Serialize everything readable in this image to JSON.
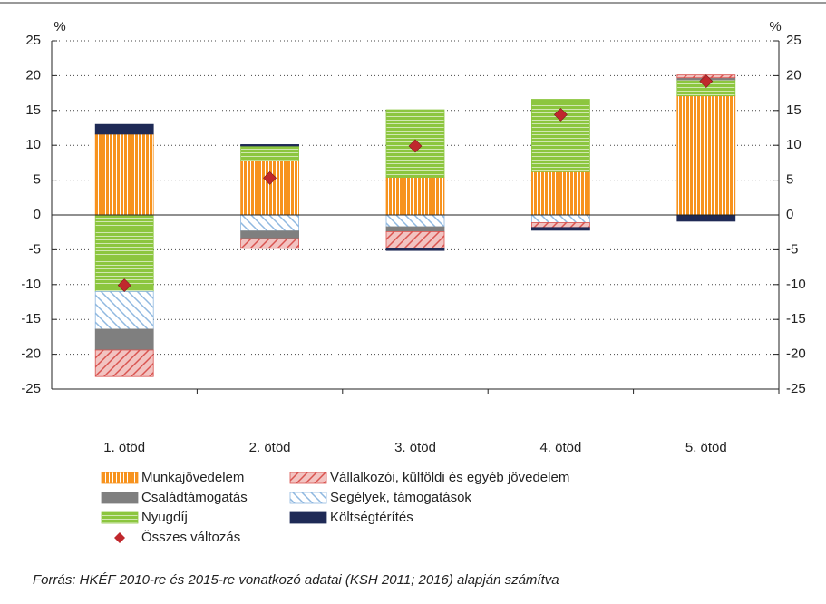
{
  "chart_data": {
    "type": "stacked_bar",
    "ylabel": "%",
    "y2label": "%",
    "categories": [
      "1. ötöd",
      "2. ötöd",
      "3. ötöd",
      "4. ötöd",
      "5. ötöd"
    ],
    "series": [
      {
        "name": "Munkajövedelem",
        "color": "#f7931e",
        "values": [
          11.6,
          7.8,
          5.4,
          6.2,
          17.1
        ]
      },
      {
        "name": "Nyugdíj",
        "color": "#8cc63f",
        "values": [
          -11.0,
          2.1,
          9.7,
          10.4,
          2.3
        ]
      },
      {
        "name": "Segélyek, támogatások",
        "color": "#8fb8e0",
        "values": [
          -5.4,
          -2.3,
          -1.7,
          -1.1,
          0
        ]
      },
      {
        "name": "Családtámogatás",
        "color": "#7f7f7f",
        "values": [
          -3.0,
          -1.1,
          -0.7,
          0,
          0.3
        ]
      },
      {
        "name": "Vállalkozói, külföldi és egyéb jövedelem",
        "color": "#d9534f",
        "values": [
          -3.8,
          -1.4,
          -2.4,
          -0.7,
          0.4
        ]
      },
      {
        "name": "Költségtérítés",
        "color": "#1f2a56",
        "values": [
          1.4,
          0.2,
          -0.3,
          -0.4,
          -0.9
        ]
      }
    ],
    "total": {
      "name": "Összes változás",
      "color": "#c0282d",
      "values": [
        -10.1,
        5.3,
        9.9,
        14.4,
        19.2
      ]
    },
    "ylim": [
      -25,
      25
    ],
    "yticks": [
      -25,
      -20,
      -15,
      -10,
      -5,
      0,
      5,
      10,
      15,
      20,
      25
    ],
    "y2lim": [
      -25,
      25
    ],
    "y2ticks": [
      -25,
      -20,
      -15,
      -10,
      -5,
      0,
      5,
      10,
      15,
      20,
      25
    ],
    "grid": true,
    "source": "Forrás: HKÉF 2010-re és 2015-re vonatkozó adatai (KSH 2011; 2016) alapján számítva"
  }
}
